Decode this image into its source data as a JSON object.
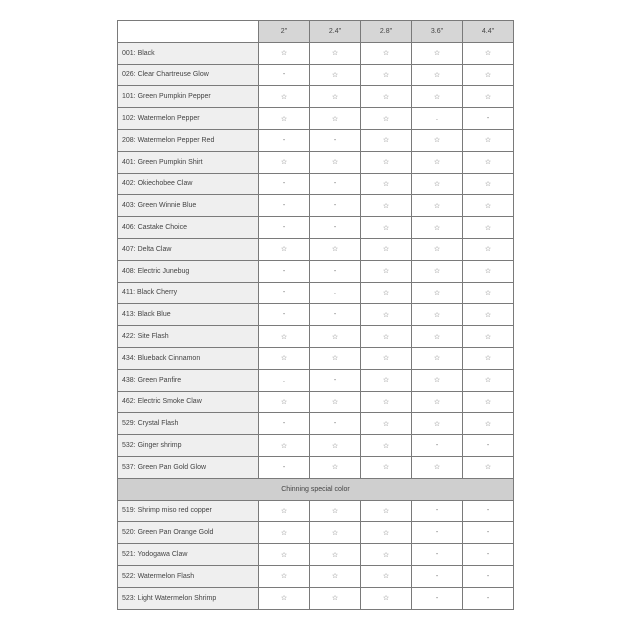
{
  "table": {
    "columns": [
      "2\"",
      "2.4\"",
      "2.8\"",
      "3.6\"",
      "4.4\""
    ],
    "symbols": {
      "available": "☆",
      "unavailable": "-"
    },
    "rows": [
      {
        "name": "001: Black",
        "values": [
          "☆",
          "☆",
          "☆",
          "☆",
          "☆"
        ]
      },
      {
        "name": "026: Clear Chartreuse Glow",
        "values": [
          "-",
          "☆",
          "☆",
          "☆",
          "☆"
        ]
      },
      {
        "name": "101: Green Pumpkin Pepper",
        "values": [
          "☆",
          "☆",
          "☆",
          "☆",
          "☆"
        ]
      },
      {
        "name": "102: Watermelon Pepper",
        "values": [
          "☆",
          "☆",
          "☆",
          ".",
          "-"
        ]
      },
      {
        "name": "208: Watermelon Pepper Red",
        "values": [
          "-",
          "-",
          "☆",
          "☆",
          "☆"
        ]
      },
      {
        "name": "401: Green Pumpkin Shirt",
        "values": [
          "☆",
          "☆",
          "☆",
          "☆",
          "☆"
        ]
      },
      {
        "name": "402: Okiechobee Claw",
        "values": [
          "-",
          "-",
          "☆",
          "☆",
          "☆"
        ]
      },
      {
        "name": "403: Green Winnie Blue",
        "values": [
          "-",
          "-",
          "☆",
          "☆",
          "☆"
        ]
      },
      {
        "name": "406: Castake Choice",
        "values": [
          "-",
          "-",
          "☆",
          "☆",
          "☆"
        ]
      },
      {
        "name": "407: Delta Claw",
        "values": [
          "☆",
          "☆",
          "☆",
          "☆",
          "☆"
        ]
      },
      {
        "name": "408: Electric Junebug",
        "values": [
          "-",
          "-",
          "☆",
          "☆",
          "☆"
        ]
      },
      {
        "name": "411: Black Cherry",
        "values": [
          "-",
          ".",
          "☆",
          "☆",
          "☆"
        ]
      },
      {
        "name": "413: Black Blue",
        "values": [
          "-",
          "-",
          "☆",
          "☆",
          "☆"
        ]
      },
      {
        "name": "422: Site Flash",
        "values": [
          "☆",
          "☆",
          "☆",
          "☆",
          "☆"
        ]
      },
      {
        "name": "434: Blueback Cinnamon",
        "values": [
          "☆",
          "☆",
          "☆",
          "☆",
          "☆"
        ]
      },
      {
        "name": "438: Green Panfire",
        "values": [
          ".",
          "-",
          "☆",
          "☆",
          "☆"
        ]
      },
      {
        "name": "462: Electric Smoke Claw",
        "values": [
          "☆",
          "☆",
          "☆",
          "☆",
          "☆"
        ]
      },
      {
        "name": "529: Crystal Flash",
        "values": [
          "-",
          "-",
          "☆",
          "☆",
          "☆"
        ]
      },
      {
        "name": "532: Ginger shrimp",
        "values": [
          "☆",
          "☆",
          "☆",
          "-",
          "-"
        ]
      },
      {
        "name": "537: Green Pan Gold Glow",
        "values": [
          "-",
          "☆",
          "☆",
          "☆",
          "☆"
        ]
      }
    ],
    "section_title": "Chinning special color",
    "section_rows": [
      {
        "name": "519: Shrimp miso red copper",
        "values": [
          "☆",
          "☆",
          "☆",
          "-",
          "-"
        ]
      },
      {
        "name": "520: Green Pan Orange Gold",
        "values": [
          "☆",
          "☆",
          "☆",
          "-",
          "-"
        ]
      },
      {
        "name": "521: Yodogawa Claw",
        "values": [
          "☆",
          "☆",
          "☆",
          "-",
          "-"
        ]
      },
      {
        "name": "522: Watermelon Flash",
        "values": [
          "☆",
          "☆",
          "☆",
          "-",
          "-"
        ]
      },
      {
        "name": "523: Light Watermelon Shrimp",
        "values": [
          "☆",
          "☆",
          "☆",
          "-",
          "-"
        ]
      }
    ]
  }
}
